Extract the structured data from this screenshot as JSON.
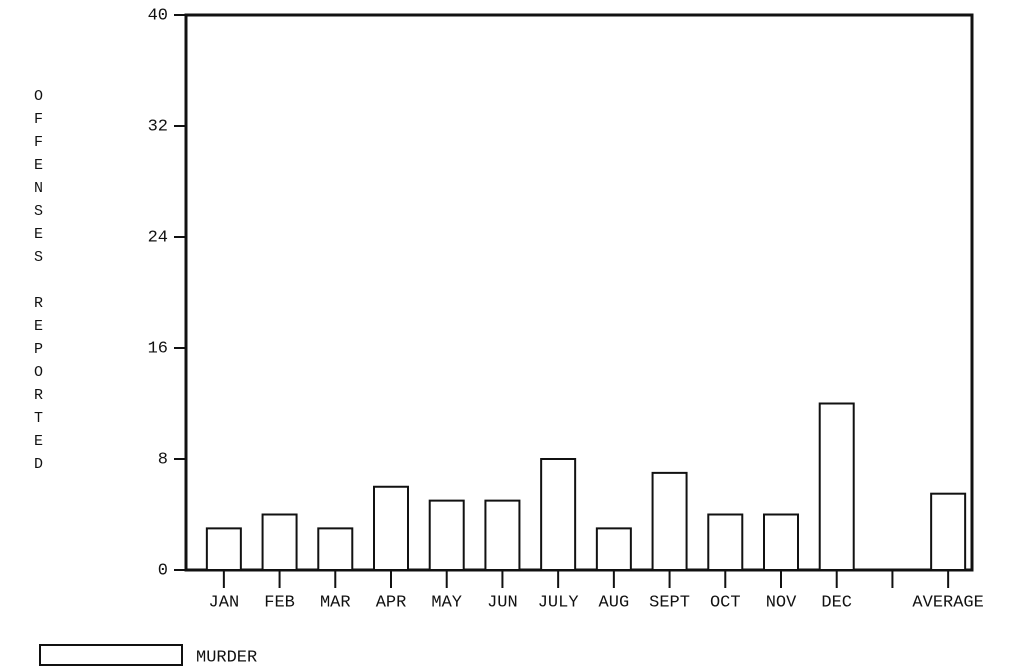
{
  "chart_data": {
    "type": "bar",
    "y_label": "OFFENSES REPORTED",
    "categories": [
      "JAN",
      "FEB",
      "MAR",
      "APR",
      "MAY",
      "JUN",
      "JULY",
      "AUG",
      "SEPT",
      "OCT",
      "NOV",
      "DEC",
      null,
      "AVERAGE"
    ],
    "series": [
      {
        "name": "MURDER",
        "color": "#ffffff",
        "values": [
          3,
          4,
          3,
          6,
          5,
          5,
          8,
          3,
          7,
          4,
          4,
          12,
          null,
          5.5
        ]
      }
    ],
    "ylim": [
      0,
      40
    ],
    "yticks": [
      0,
      8,
      16,
      24,
      32,
      40
    ],
    "grid": false
  }
}
